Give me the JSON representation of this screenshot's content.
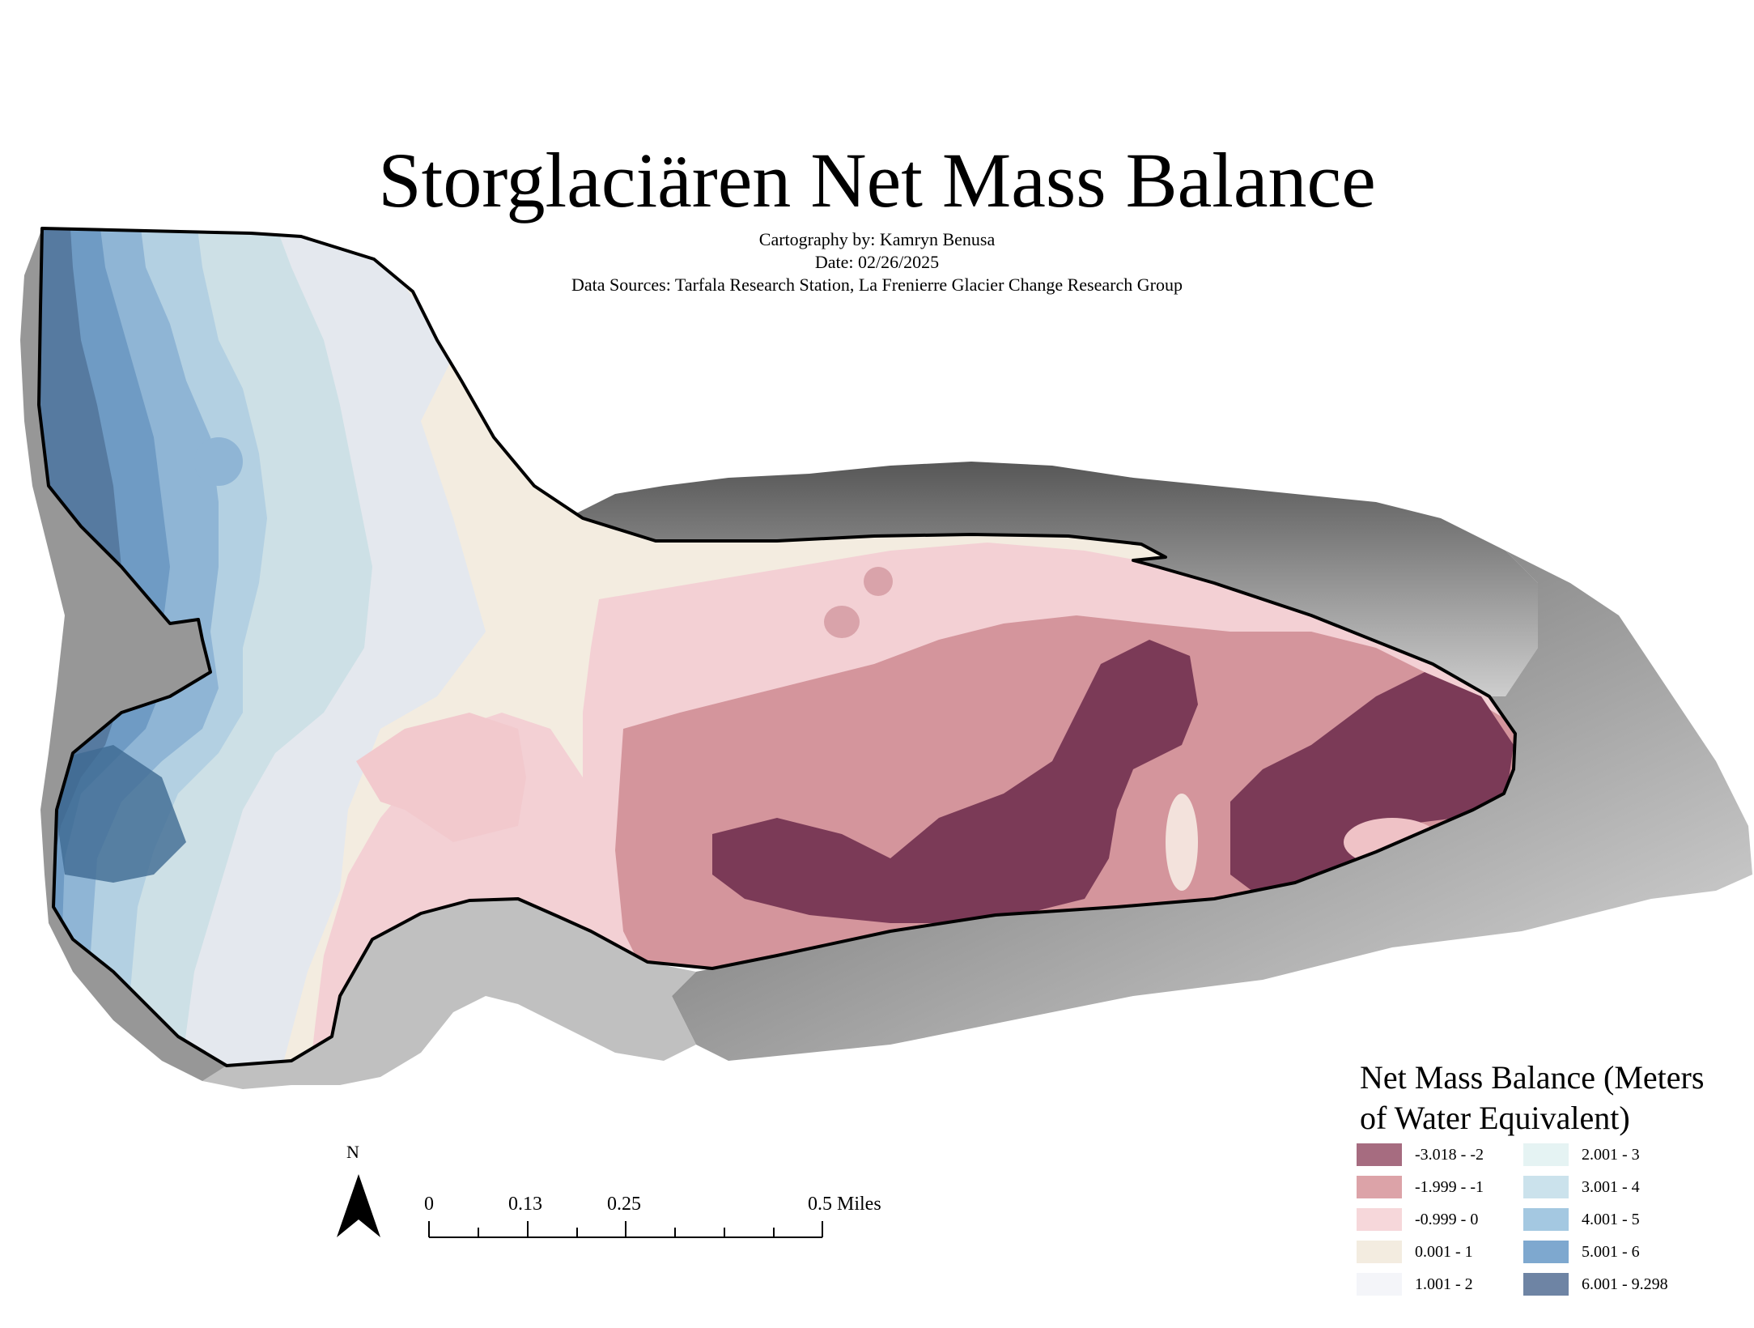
{
  "map": {
    "title": "Storglaciären Net Mass Balance",
    "cartography": "Cartography by: Kamryn Benusa",
    "date": "Date: 02/26/2025",
    "sources": "Data Sources: Tarfala Research Station, La Frenierre Glacier Change Research Group"
  },
  "legend": {
    "title_line1": "Net Mass Balance (Meters",
    "title_line2": "of Water Equivalent)",
    "items": [
      {
        "label": "-3.018 - -2",
        "color": "#a66c80"
      },
      {
        "label": "-1.999 - -1",
        "color": "#dca3a8"
      },
      {
        "label": "-0.999 - 0",
        "color": "#f6d7da"
      },
      {
        "label": "0.001 - 1",
        "color": "#f3ece0"
      },
      {
        "label": "1.001 - 2",
        "color": "#f4f5f9"
      },
      {
        "label": "2.001 - 3",
        "color": "#e5f3f3"
      },
      {
        "label": "3.001 - 4",
        "color": "#cbe2ec"
      },
      {
        "label": "4.001 - 5",
        "color": "#a4c8e1"
      },
      {
        "label": "5.001 - 6",
        "color": "#7ea8cf"
      },
      {
        "label": "6.001 - 9.298",
        "color": "#6e84a4"
      }
    ]
  },
  "north_arrow": {
    "label": "N",
    "icon": "north-arrow-icon"
  },
  "scale_bar": {
    "labels": [
      "0",
      "0.13",
      "0.25",
      "0.5 Miles"
    ],
    "unit": "Miles"
  },
  "colors": {
    "outline": "#000000",
    "hillshade": "#9a9a9a",
    "accumulation": "#3f6f98",
    "ablation": "#7a3550"
  }
}
